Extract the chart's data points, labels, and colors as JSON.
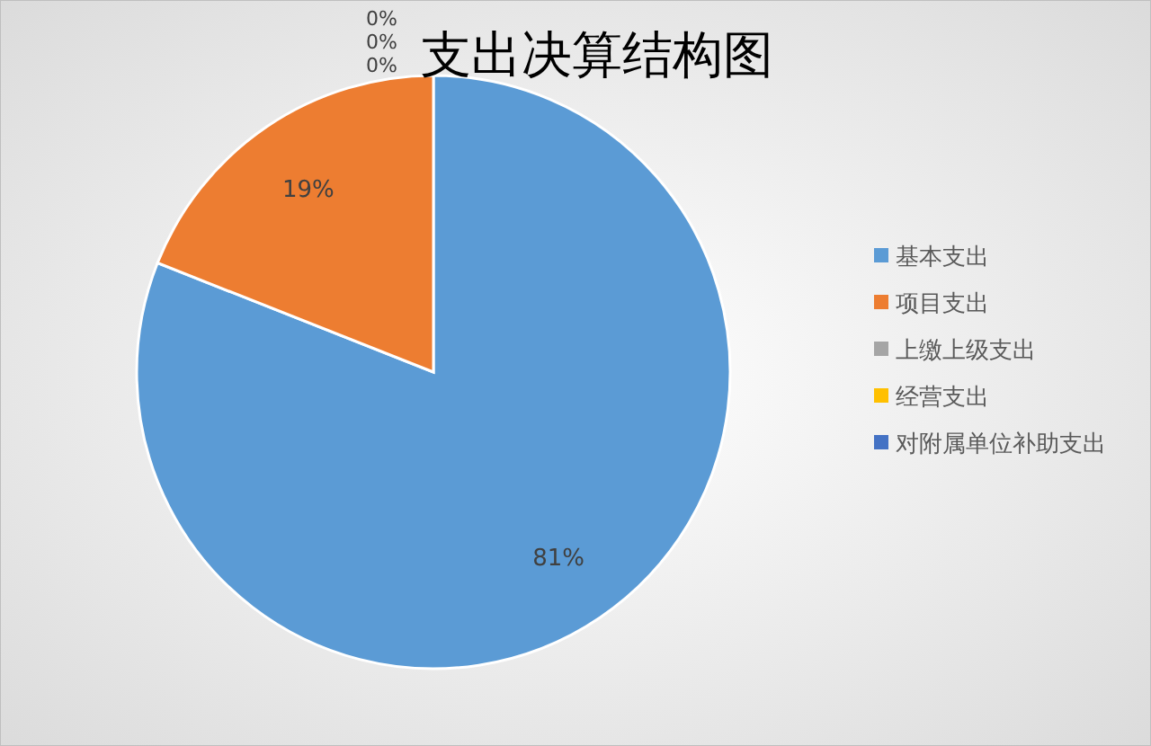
{
  "chart_data": {
    "type": "pie",
    "title": "支出决算结构图",
    "categories": [
      "基本支出",
      "项目支出",
      "上缴上级支出",
      "经营支出",
      "对附属单位补助支出"
    ],
    "values": [
      81,
      19,
      0,
      0,
      0
    ],
    "value_labels": [
      "81%",
      "19%",
      "0%",
      "0%",
      "0%"
    ],
    "colors": [
      "#5b9bd5",
      "#ed7d31",
      "#a5a5a5",
      "#ffc000",
      "#4472c4"
    ],
    "legend": "right"
  }
}
